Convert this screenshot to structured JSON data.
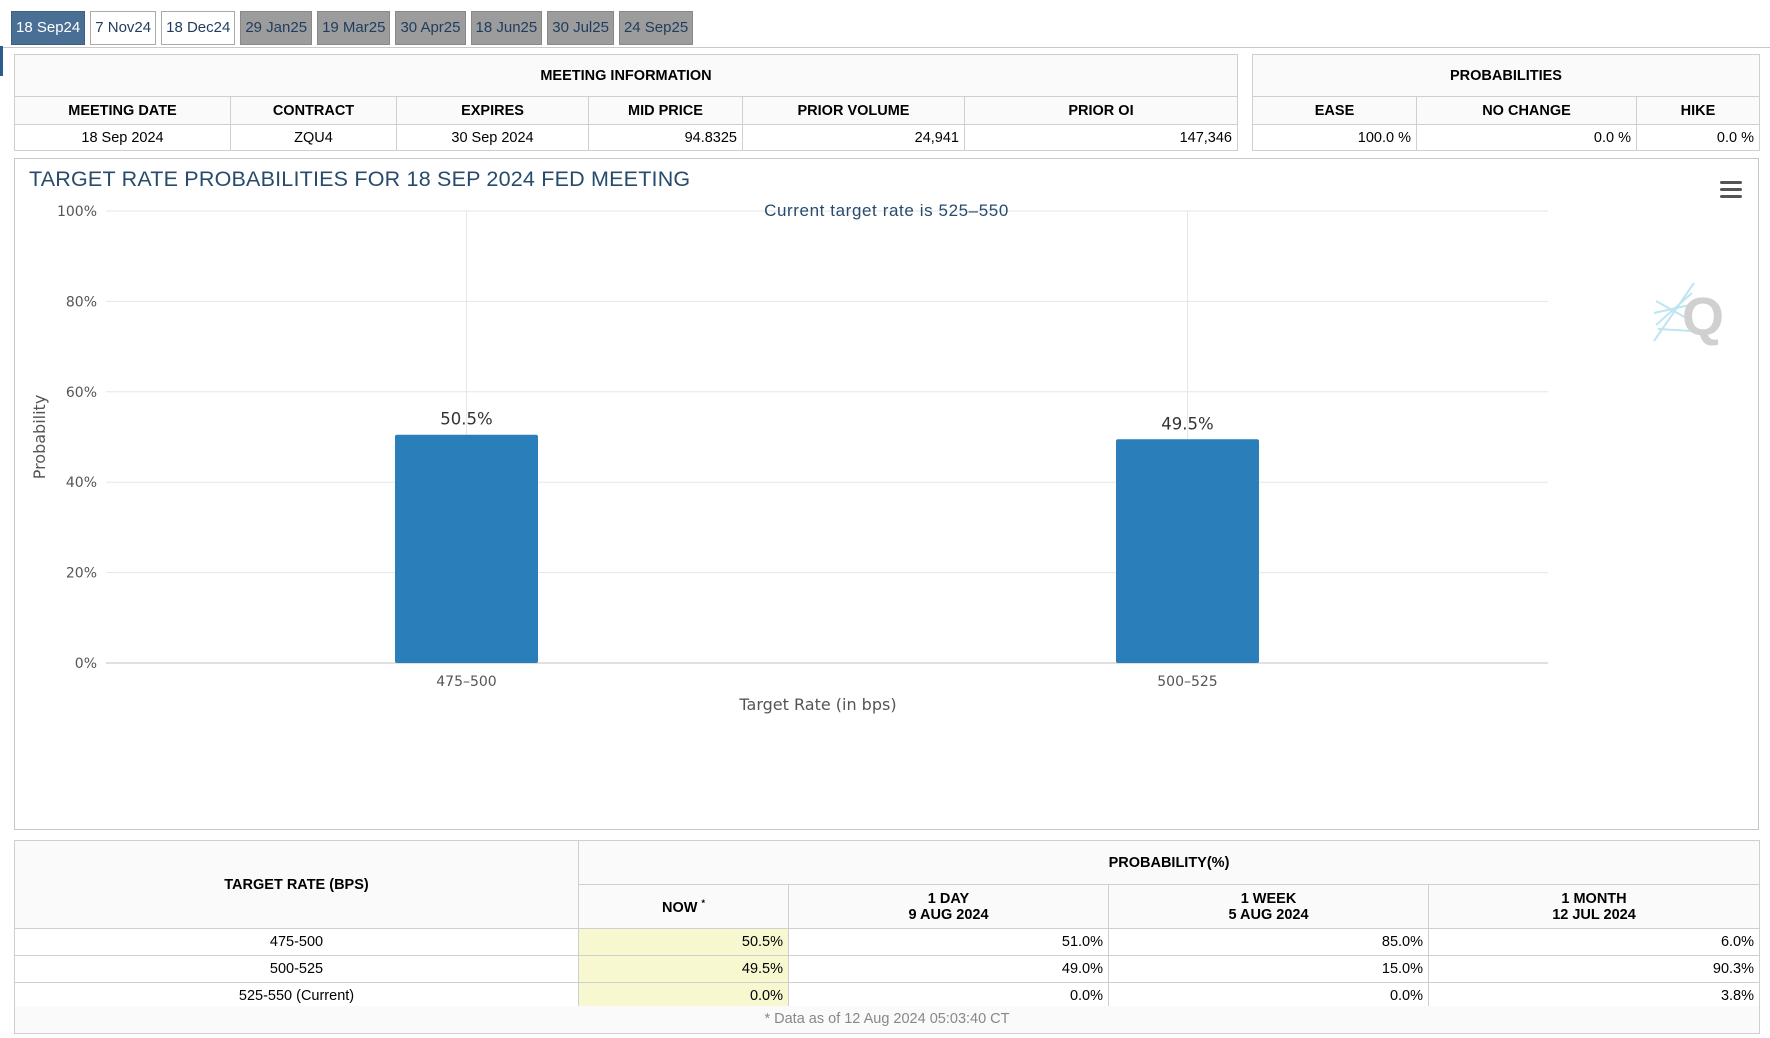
{
  "tabs": [
    {
      "label": "18 Sep24",
      "state": "active"
    },
    {
      "label": "7 Nov24",
      "state": "light"
    },
    {
      "label": "18 Dec24",
      "state": "light"
    },
    {
      "label": "29 Jan25",
      "state": "gray"
    },
    {
      "label": "19 Mar25",
      "state": "gray"
    },
    {
      "label": "30 Apr25",
      "state": "gray"
    },
    {
      "label": "18 Jun25",
      "state": "gray"
    },
    {
      "label": "30 Jul25",
      "state": "gray"
    },
    {
      "label": "24 Sep25",
      "state": "gray"
    }
  ],
  "meeting_info": {
    "title": "MEETING INFORMATION",
    "headers": [
      "MEETING DATE",
      "CONTRACT",
      "EXPIRES",
      "MID PRICE",
      "PRIOR VOLUME",
      "PRIOR OI"
    ],
    "values": [
      "18 Sep 2024",
      "ZQU4",
      "30 Sep 2024",
      "94.8325",
      "24,941",
      "147,346"
    ]
  },
  "probabilities": {
    "title": "PROBABILITIES",
    "headers": [
      "EASE",
      "NO CHANGE",
      "HIKE"
    ],
    "values": [
      "100.0 %",
      "0.0 %",
      "0.0 %"
    ]
  },
  "chart_data": {
    "type": "bar",
    "title": "TARGET RATE PROBABILITIES FOR 18 SEP 2024 FED MEETING",
    "subtitle": "Current target rate is 525–550",
    "categories": [
      "475–500",
      "500–525"
    ],
    "values": [
      50.5,
      49.5
    ],
    "data_labels": [
      "50.5%",
      "49.5%"
    ],
    "xlabel": "Target Rate (in bps)",
    "ylabel": "Probability",
    "ylim": [
      0,
      100
    ],
    "yticks": [
      "0%",
      "20%",
      "40%",
      "60%",
      "80%",
      "100%"
    ],
    "grid": true,
    "bar_color": "#2a7fba",
    "title_color": "#274b6d"
  },
  "rate_table": {
    "col_target": "TARGET RATE (BPS)",
    "col_prob": "PROBABILITY(%)",
    "now_label": "NOW",
    "now_mark": "*",
    "periods": [
      {
        "line1": "1 DAY",
        "line2": "9 AUG 2024"
      },
      {
        "line1": "1 WEEK",
        "line2": "5 AUG 2024"
      },
      {
        "line1": "1 MONTH",
        "line2": "12 JUL 2024"
      }
    ],
    "rows": [
      {
        "rate": "475-500",
        "now": "50.5%",
        "day": "51.0%",
        "week": "85.0%",
        "month": "6.0%"
      },
      {
        "rate": "500-525",
        "now": "49.5%",
        "day": "49.0%",
        "week": "15.0%",
        "month": "90.3%"
      },
      {
        "rate": "525-550 (Current)",
        "now": "0.0%",
        "day": "0.0%",
        "week": "0.0%",
        "month": "3.8%"
      }
    ],
    "footnote": "* Data as of 12 Aug 2024 05:03:40 CT"
  },
  "icons": {
    "menu": "hamburger-menu-icon",
    "logo": "q-logo-icon"
  }
}
